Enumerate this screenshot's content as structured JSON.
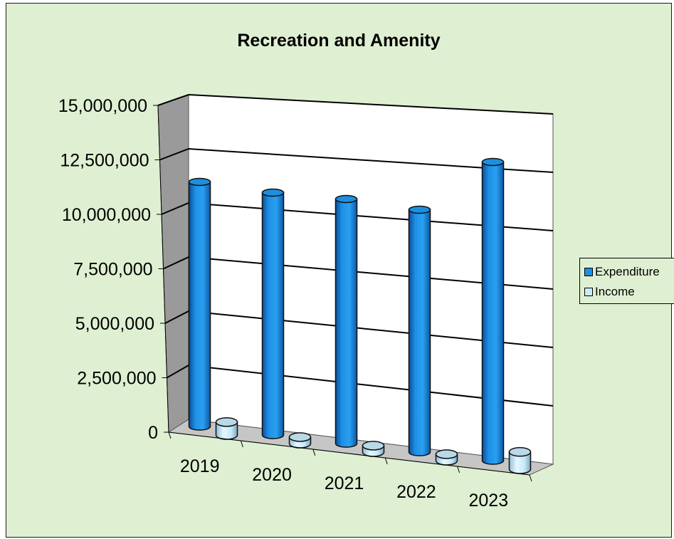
{
  "chart_data": {
    "type": "bar",
    "title": "Recreation and Amenity",
    "xlabel": "",
    "ylabel": "",
    "categories": [
      "2019",
      "2020",
      "2021",
      "2022",
      "2023"
    ],
    "series": [
      {
        "name": "Expenditure",
        "values": [
          11300000,
          11200000,
          11300000,
          11200000,
          13800000
        ],
        "color": "#1c8fe0"
      },
      {
        "name": "Income",
        "values": [
          600000,
          300000,
          300000,
          300000,
          800000
        ],
        "color": "#c8ecfa"
      }
    ],
    "ylim": [
      0,
      15000000
    ],
    "yticks": [
      0,
      2500000,
      5000000,
      7500000,
      10000000,
      12500000,
      15000000
    ],
    "ytick_labels": [
      "0",
      "2,500,000",
      "5,000,000",
      "7,500,000",
      "10,000,000",
      "12,500,000",
      "15,000,000"
    ],
    "grid": true,
    "legend_position": "right",
    "colors": {
      "background": "#dff0d2",
      "plot_wall": "#ffffff",
      "side_wall": "#9a9a9a",
      "floor": "#c6c6c6"
    }
  }
}
